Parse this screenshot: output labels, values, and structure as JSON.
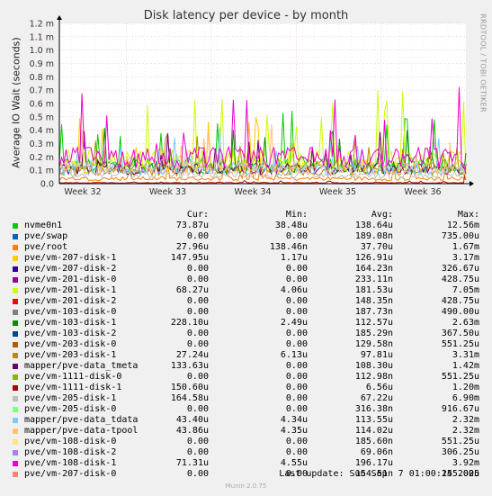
{
  "title": "Disk latency per device - by month",
  "side_text": "RRDTOOL / TOBI OETIKER",
  "headers": {
    "cur": "Cur:",
    "min": "Min:",
    "avg": "Avg:",
    "max": "Max:"
  },
  "last_update": "Last update: Sun Sep  7 01:00:15 2025",
  "footer": "Munin 2.0.75",
  "chart_data": {
    "type": "line",
    "title": "Disk latency per device - by month",
    "ylabel": "Average IO Wait (seconds)",
    "ylim": [
      0,
      1.2
    ],
    "y_ticks": [
      0.0,
      0.1,
      0.2,
      0.3,
      0.4,
      0.5,
      0.6,
      0.7,
      0.8,
      0.9,
      1.0,
      1.1,
      1.2
    ],
    "y_tick_labels": [
      "0.0",
      "0.1 m",
      "0.2 m",
      "0.3 m",
      "0.4 m",
      "0.5 m",
      "0.6 m",
      "0.7 m",
      "0.8 m",
      "0.9 m",
      "1.0 m",
      "1.1 m",
      "1.2 m"
    ],
    "x_tick_labels": [
      "Week 32",
      "Week 33",
      "Week 34",
      "Week 35",
      "Week 36"
    ],
    "grid": true,
    "legend_position": "bottom",
    "series": [
      {
        "name": "nvme0n1",
        "color": "#00cc00",
        "cur": "73.87u",
        "min": "38.48u",
        "avg": "138.64u",
        "max": "12.56m"
      },
      {
        "name": "pve/swap",
        "color": "#0066b3",
        "cur": "0.00",
        "min": "0.00",
        "avg": "189.08n",
        "max": "735.00u"
      },
      {
        "name": "pve/root",
        "color": "#ff8000",
        "cur": "27.96u",
        "min": "138.46n",
        "avg": "37.70u",
        "max": "1.67m"
      },
      {
        "name": "pve/vm-207-disk-1",
        "color": "#ffcc00",
        "cur": "147.95u",
        "min": "1.17u",
        "avg": "126.91u",
        "max": "3.17m"
      },
      {
        "name": "pve/vm-207-disk-2",
        "color": "#330099",
        "cur": "0.00",
        "min": "0.00",
        "avg": "164.23n",
        "max": "326.67u"
      },
      {
        "name": "pve/vm-201-disk-0",
        "color": "#990099",
        "cur": "0.00",
        "min": "0.00",
        "avg": "233.11n",
        "max": "428.75u"
      },
      {
        "name": "pve/vm-201-disk-1",
        "color": "#ccff00",
        "cur": "68.27u",
        "min": "4.06u",
        "avg": "181.53u",
        "max": "7.05m"
      },
      {
        "name": "pve/vm-201-disk-2",
        "color": "#ff0000",
        "cur": "0.00",
        "min": "0.00",
        "avg": "148.35n",
        "max": "428.75u"
      },
      {
        "name": "pve/vm-103-disk-0",
        "color": "#808080",
        "cur": "0.00",
        "min": "0.00",
        "avg": "187.73n",
        "max": "490.00u"
      },
      {
        "name": "pve/vm-103-disk-1",
        "color": "#008f00",
        "cur": "228.10u",
        "min": "2.49u",
        "avg": "112.57u",
        "max": "2.63m"
      },
      {
        "name": "pve/vm-103-disk-2",
        "color": "#00487d",
        "cur": "0.00",
        "min": "0.00",
        "avg": "185.29n",
        "max": "367.50u"
      },
      {
        "name": "pve/vm-203-disk-0",
        "color": "#b35a00",
        "cur": "0.00",
        "min": "0.00",
        "avg": "129.58n",
        "max": "551.25u"
      },
      {
        "name": "pve/vm-203-disk-1",
        "color": "#b38f00",
        "cur": "27.24u",
        "min": "6.13u",
        "avg": "97.81u",
        "max": "3.31m"
      },
      {
        "name": "mapper/pve-data_tmeta",
        "color": "#6b006b",
        "cur": "133.63u",
        "min": "0.00",
        "avg": "108.30u",
        "max": "1.42m"
      },
      {
        "name": "pve/vm-1111-disk-0",
        "color": "#8fb300",
        "cur": "0.00",
        "min": "0.00",
        "avg": "112.98n",
        "max": "551.25u"
      },
      {
        "name": "pve/vm-1111-disk-1",
        "color": "#b30000",
        "cur": "150.60u",
        "min": "0.00",
        "avg": "6.56u",
        "max": "1.20m"
      },
      {
        "name": "pve/vm-205-disk-1",
        "color": "#bebebe",
        "cur": "164.58u",
        "min": "0.00",
        "avg": "67.22u",
        "max": "6.90m"
      },
      {
        "name": "pve/vm-205-disk-0",
        "color": "#80ff80",
        "cur": "0.00",
        "min": "0.00",
        "avg": "316.38n",
        "max": "916.67u"
      },
      {
        "name": "mapper/pve-data_tdata",
        "color": "#80c9ff",
        "cur": "43.40u",
        "min": "4.34u",
        "avg": "113.55u",
        "max": "2.32m"
      },
      {
        "name": "mapper/pve-data-tpool",
        "color": "#ffc080",
        "cur": "43.86u",
        "min": "4.35u",
        "avg": "114.02u",
        "max": "2.32m"
      },
      {
        "name": "pve/vm-108-disk-0",
        "color": "#ffe680",
        "cur": "0.00",
        "min": "0.00",
        "avg": "185.60n",
        "max": "551.25u"
      },
      {
        "name": "pve/vm-108-disk-2",
        "color": "#aa80ff",
        "cur": "0.00",
        "min": "0.00",
        "avg": "69.06n",
        "max": "306.25u"
      },
      {
        "name": "pve/vm-108-disk-1",
        "color": "#ee00cc",
        "cur": "71.31u",
        "min": "4.55u",
        "avg": "196.17u",
        "max": "3.92m"
      },
      {
        "name": "pve/vm-207-disk-0",
        "color": "#ff8080",
        "cur": "0.00",
        "min": "0.00",
        "avg": "154.51n",
        "max": "245.00u"
      }
    ]
  }
}
